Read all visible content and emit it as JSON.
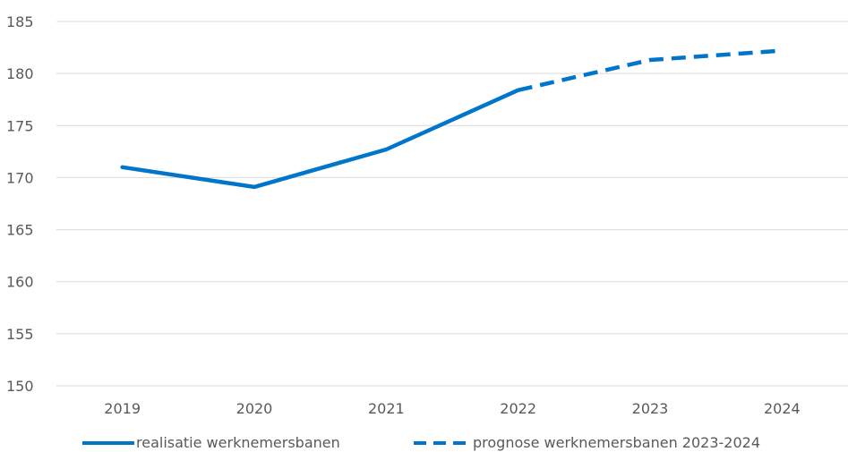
{
  "chart_data": {
    "type": "line",
    "categories": [
      "2019",
      "2020",
      "2021",
      "2022",
      "2023",
      "2024"
    ],
    "ylim": [
      150,
      185
    ],
    "yticks": [
      150,
      155,
      160,
      165,
      170,
      175,
      180,
      185
    ],
    "grid": true,
    "legend_position": "bottom",
    "series": [
      {
        "name": "realisatie werknemersbanen",
        "style": "solid",
        "color": "#0075c9",
        "x": [
          "2019",
          "2020",
          "2021",
          "2022"
        ],
        "values": [
          171.0,
          169.1,
          172.7,
          178.4
        ]
      },
      {
        "name": "prognose werknemersbanen 2023-2024",
        "style": "dashed",
        "color": "#0075c9",
        "x": [
          "2022",
          "2023",
          "2024"
        ],
        "values": [
          178.4,
          181.3,
          182.2
        ]
      }
    ]
  },
  "colors": {
    "line": "#0075c9",
    "grid": "#d9d9d9",
    "text": "#595959"
  }
}
